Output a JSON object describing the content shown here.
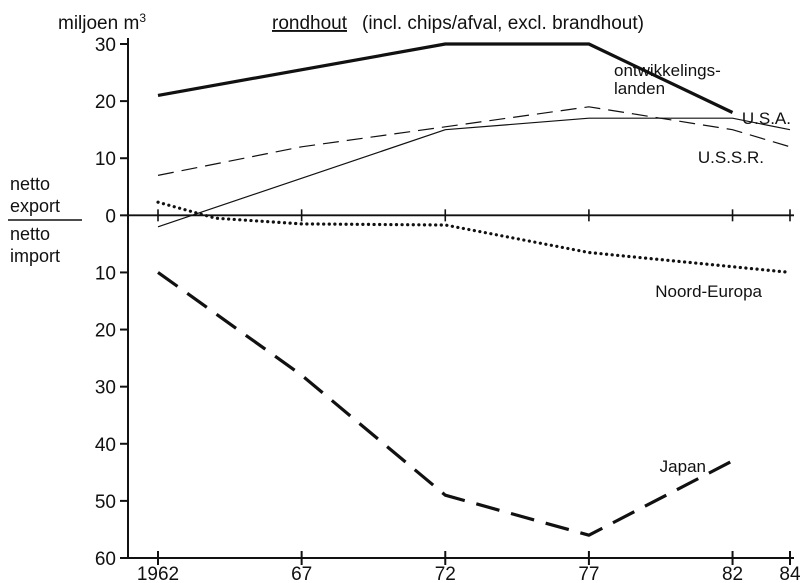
{
  "chart_data": {
    "type": "line",
    "title": "rondhout",
    "subtitle": "(incl. chips/afval, excl. brandhout)",
    "ylabel": "miljoen m",
    "ylabel_sup": "3",
    "label_export": [
      "netto",
      "export"
    ],
    "label_import": [
      "netto",
      "import"
    ],
    "x_ticks": [
      1962,
      1967,
      1972,
      1977,
      1982,
      1984
    ],
    "x_tick_labels": [
      "1962",
      "67",
      "72",
      "77",
      "82",
      "84"
    ],
    "xlim": [
      1962,
      1984
    ],
    "ylim": [
      -60,
      30
    ],
    "y_ticks": [
      30,
      20,
      10,
      0,
      -10,
      -20,
      -30,
      -40,
      -50,
      -60
    ],
    "y_tick_labels": [
      "30",
      "20",
      "10",
      "0",
      "10",
      "20",
      "30",
      "40",
      "50",
      "60"
    ],
    "series": [
      {
        "name": "ontwikkelings- landen",
        "label_lines": [
          "ontwikkelings-",
          "landen"
        ],
        "style": "thick-solid",
        "x": [
          1962,
          1972,
          1977,
          1982
        ],
        "y": [
          21,
          30,
          30,
          18
        ]
      },
      {
        "name": "U.S.A.",
        "label_lines": [
          "U.S.A."
        ],
        "style": "thin-solid",
        "x": [
          1962,
          1972,
          1977,
          1982,
          1984
        ],
        "y": [
          -2,
          15,
          17,
          17,
          15
        ]
      },
      {
        "name": "U.S.S.R.",
        "label_lines": [
          "U.S.S.R."
        ],
        "style": "thin-dashed",
        "x": [
          1962,
          1967,
          1972,
          1977,
          1982,
          1984
        ],
        "y": [
          7,
          12,
          15.5,
          19,
          15,
          12
        ]
      },
      {
        "name": "Noord-Europa",
        "label_lines": [
          "Noord-Europa"
        ],
        "style": "dotted",
        "x": [
          1962,
          1964,
          1967,
          1972,
          1977,
          1982,
          1984
        ],
        "y": [
          2.3,
          -0.5,
          -1.5,
          -1.7,
          -6.5,
          -9,
          -10
        ]
      },
      {
        "name": "Japan",
        "label_lines": [
          "Japan"
        ],
        "style": "thick-dashed",
        "x": [
          1962,
          1967,
          1972,
          1977,
          1982
        ],
        "y": [
          -10,
          -28,
          -49,
          -56,
          -43
        ]
      }
    ]
  }
}
